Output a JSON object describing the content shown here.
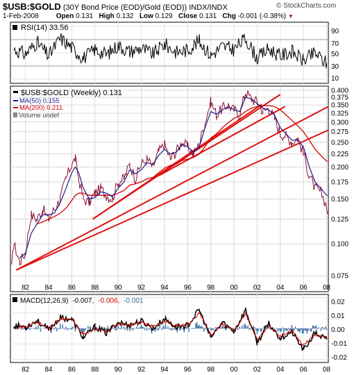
{
  "header": {
    "symbol": "$USB:$GOLD",
    "description": "(30Y Bond Price (EOD)/Gold (EOD))",
    "exchange": "INDX/INDX",
    "site": "© StockCharts.com",
    "date": "1-Feb-2008",
    "open_label": "Open",
    "open": "0.131",
    "high_label": "High",
    "high": "0.132",
    "low_label": "Low",
    "low": "0.129",
    "close_label": "Close",
    "close": "0.131",
    "chg_label": "Chg",
    "chg": "-0.001 (-0.38%)",
    "chg_marker": "▼"
  },
  "rsi": {
    "label": "RSI(14) 33.56",
    "ticks": [
      "90",
      "70",
      "50",
      "30",
      "10"
    ]
  },
  "legend": {
    "main": "$USB:$GOLD (Weekly) 0.131",
    "ma50": "MA(50) 0.155",
    "ma200": "MA(200) 0.211",
    "volume": "Volume undef"
  },
  "macd": {
    "label_prefix": "MACD(12,26,9)",
    "v1": "-0.007,",
    "v2": "-0.006,",
    "v3": "-0.001",
    "ticks": [
      "0.02",
      "0.01",
      "0.00",
      "-0.01",
      "-0.02"
    ]
  },
  "colors": {
    "price": "#8b0f2f",
    "ma50": "#1a1a8c",
    "ma200": "#d40000",
    "trend": "#e01010",
    "macd": "#000000",
    "signal": "#c80000",
    "hist": "#3b6ea5"
  },
  "chart_data": {
    "type": "line",
    "title": "$USB:$GOLD",
    "xlabel": "",
    "ylabel": "",
    "x_ticks": [
      "82",
      "84",
      "86",
      "88",
      "90",
      "92",
      "94",
      "96",
      "98",
      "00",
      "02",
      "04",
      "06",
      "08"
    ],
    "y_ticks": [
      "0.400",
      "0.375",
      "0.350",
      "0.325",
      "0.300",
      "0.275",
      "0.250",
      "0.225",
      "0.200",
      "0.175",
      "0.150",
      "0.125",
      "0.100",
      "0.075"
    ],
    "ylim": [
      0.065,
      0.415
    ],
    "scale": "log",
    "grid": true,
    "legend": "top-left",
    "x": [
      1980.8,
      1981.0,
      1981.5,
      1982.0,
      1982.5,
      1983.0,
      1983.5,
      1984.0,
      1984.5,
      1985.0,
      1985.5,
      1986.0,
      1986.3,
      1986.6,
      1987.0,
      1987.5,
      1988.0,
      1988.5,
      1989.0,
      1989.5,
      1990.0,
      1990.5,
      1991.0,
      1991.5,
      1992.0,
      1992.5,
      1993.0,
      1993.5,
      1994.0,
      1994.5,
      1995.0,
      1995.5,
      1996.0,
      1996.5,
      1997.0,
      1997.5,
      1998.0,
      1998.5,
      1999.0,
      1999.5,
      2000.0,
      2000.5,
      2001.0,
      2001.5,
      2002.0,
      2002.5,
      2003.0,
      2003.5,
      2004.0,
      2004.5,
      2005.0,
      2005.5,
      2006.0,
      2006.5,
      2007.0,
      2007.5,
      2008.0,
      2008.08
    ],
    "series": [
      {
        "name": "$USB:$GOLD (Weekly)",
        "values": [
          0.08,
          0.1,
          0.085,
          0.092,
          0.13,
          0.125,
          0.137,
          0.125,
          0.137,
          0.15,
          0.18,
          0.205,
          0.215,
          0.18,
          0.15,
          0.145,
          0.158,
          0.165,
          0.155,
          0.15,
          0.175,
          0.18,
          0.205,
          0.18,
          0.205,
          0.215,
          0.2,
          0.23,
          0.245,
          0.215,
          0.23,
          0.25,
          0.24,
          0.225,
          0.245,
          0.3,
          0.36,
          0.32,
          0.34,
          0.35,
          0.335,
          0.32,
          0.395,
          0.37,
          0.36,
          0.33,
          0.34,
          0.31,
          0.27,
          0.265,
          0.25,
          0.26,
          0.225,
          0.185,
          0.165,
          0.16,
          0.14,
          0.131
        ]
      },
      {
        "name": "MA(50)",
        "values": [
          null,
          null,
          0.088,
          0.092,
          0.11,
          0.12,
          0.13,
          0.13,
          0.132,
          0.145,
          0.165,
          0.19,
          0.2,
          0.19,
          0.165,
          0.15,
          0.152,
          0.16,
          0.158,
          0.153,
          0.165,
          0.175,
          0.195,
          0.188,
          0.195,
          0.208,
          0.205,
          0.222,
          0.235,
          0.225,
          0.228,
          0.245,
          0.24,
          0.23,
          0.24,
          0.285,
          0.33,
          0.322,
          0.335,
          0.345,
          0.335,
          0.33,
          0.375,
          0.37,
          0.355,
          0.34,
          0.335,
          0.32,
          0.285,
          0.27,
          0.255,
          0.255,
          0.24,
          0.2,
          0.175,
          0.165,
          0.155,
          0.155
        ]
      },
      {
        "name": "MA(200)",
        "values": [
          null,
          null,
          null,
          null,
          null,
          0.12,
          0.122,
          0.125,
          0.128,
          0.132,
          0.138,
          0.148,
          0.155,
          0.158,
          0.158,
          0.155,
          0.155,
          0.155,
          0.155,
          0.155,
          0.158,
          0.162,
          0.17,
          0.172,
          0.175,
          0.18,
          0.182,
          0.19,
          0.198,
          0.203,
          0.205,
          0.212,
          0.215,
          0.218,
          0.225,
          0.24,
          0.26,
          0.27,
          0.285,
          0.298,
          0.31,
          0.318,
          0.33,
          0.34,
          0.345,
          0.348,
          0.348,
          0.345,
          0.335,
          0.32,
          0.305,
          0.29,
          0.275,
          0.255,
          0.235,
          0.222,
          0.211,
          0.211
        ]
      }
    ],
    "rsi": {
      "name": "RSI(14)",
      "ylim": [
        10,
        90
      ],
      "last": 33.56,
      "x": [
        1981.0,
        1982.0,
        1983.0,
        1984.0,
        1985.0,
        1986.0,
        1987.0,
        1988.0,
        1989.0,
        1990.0,
        1991.0,
        1992.0,
        1993.0,
        1994.0,
        1995.0,
        1996.0,
        1997.0,
        1998.0,
        1999.0,
        2000.0,
        2001.0,
        2002.0,
        2003.0,
        2004.0,
        2005.0,
        2006.0,
        2007.0,
        2008.0
      ],
      "values": [
        55,
        48,
        66,
        45,
        72,
        58,
        42,
        55,
        47,
        61,
        52,
        57,
        48,
        63,
        51,
        54,
        68,
        46,
        60,
        55,
        72,
        42,
        56,
        45,
        52,
        38,
        50,
        34
      ]
    },
    "macd": {
      "name": "MACD(12,26,9)",
      "ylim": [
        -0.022,
        0.022
      ],
      "x": [
        1981.0,
        1982.0,
        1983.0,
        1984.0,
        1985.0,
        1986.0,
        1987.0,
        1988.0,
        1989.0,
        1990.0,
        1991.0,
        1992.0,
        1993.0,
        1994.0,
        1995.0,
        1996.0,
        1997.0,
        1998.0,
        1999.0,
        2000.0,
        2001.0,
        2002.0,
        2003.0,
        2004.0,
        2005.0,
        2006.0,
        2007.0,
        2008.0
      ],
      "macd": [
        0.002,
        0.001,
        0.005,
        -0.001,
        0.007,
        0.006,
        -0.006,
        0.001,
        -0.003,
        0.004,
        0.002,
        0.005,
        0.0,
        0.006,
        0.001,
        0.002,
        0.012,
        -0.006,
        0.004,
        -0.002,
        0.012,
        -0.009,
        0.003,
        -0.006,
        -0.002,
        -0.014,
        -0.003,
        -0.007
      ],
      "signal": [
        0.001,
        0.001,
        0.004,
        0.0,
        0.006,
        0.006,
        -0.004,
        0.0,
        -0.002,
        0.003,
        0.002,
        0.004,
        0.001,
        0.005,
        0.002,
        0.002,
        0.01,
        -0.004,
        0.003,
        -0.001,
        0.01,
        -0.007,
        0.002,
        -0.005,
        -0.002,
        -0.011,
        -0.004,
        -0.006
      ]
    }
  }
}
